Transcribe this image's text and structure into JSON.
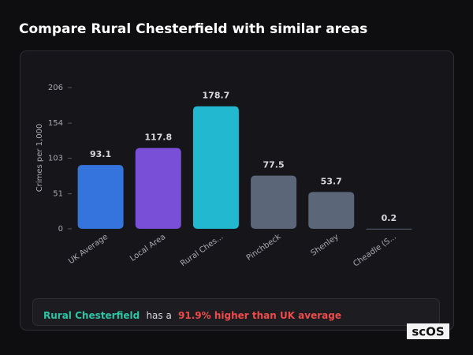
{
  "chart_data": {
    "type": "bar",
    "title": "Compare Rural Chesterfield with similar areas",
    "ylabel": "Crimes per 1,000",
    "categories": [
      "UK Average",
      "Local Area",
      "Rural Ches...",
      "Pinchbeck",
      "Shenley",
      "Cheadle (S..."
    ],
    "values": [
      93.1,
      117.8,
      178.7,
      77.5,
      53.7,
      0.2
    ],
    "colors": [
      "#3574dc",
      "#7a4fd8",
      "#22b8d0",
      "#5b6679",
      "#5b6679",
      "#5b6679"
    ],
    "ylim": [
      0,
      206
    ],
    "yticks": [
      0,
      51,
      103,
      154,
      206
    ],
    "grid": false,
    "summary": {
      "area": "Rural Chesterfield",
      "text": "has a",
      "highlight": "91.9% higher than UK average"
    },
    "logo": "scOS"
  }
}
